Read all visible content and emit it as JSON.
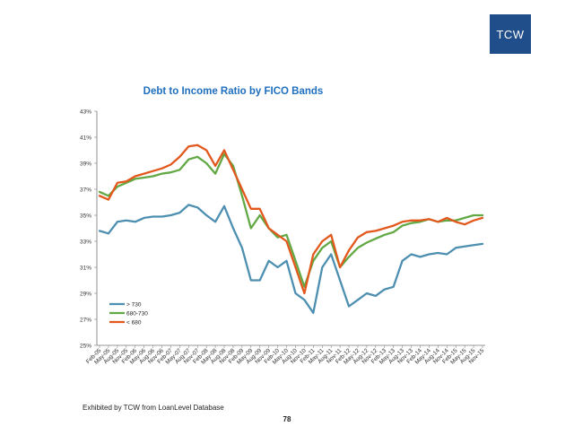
{
  "logo": {
    "text": "TCW"
  },
  "footer": {
    "source": "Exhibited by TCW from LoanLevel Database",
    "page_number": "78"
  },
  "colors": {
    "gt730": "#4d8fb0",
    "b680_730": "#62a844",
    "lt680": "#e2581d",
    "title": "#1f6fbf",
    "logo_bg": "#1f4e8a"
  },
  "chart_data": {
    "type": "line",
    "title": "Debt to Income Ratio by FICO Bands",
    "xlabel": "",
    "ylabel": "",
    "ylim": [
      25,
      43
    ],
    "yticks": [
      "25%",
      "27%",
      "29%",
      "31%",
      "33%",
      "35%",
      "37%",
      "39%",
      "41%",
      "43%"
    ],
    "grid": false,
    "legend_position": "bottom-left",
    "x_tick_labels": [
      "Feb-05",
      "May-05",
      "Aug-05",
      "Nov-05",
      "Feb-06",
      "May-06",
      "Aug-06",
      "Nov-06",
      "Feb-07",
      "May-07",
      "Aug-07",
      "Nov-07",
      "Feb-08",
      "May-08",
      "Aug-08",
      "Nov-08",
      "Feb-09",
      "May-09",
      "Aug-09",
      "Nov-09",
      "Feb-10",
      "May-10",
      "Aug-10",
      "Nov-10",
      "Feb-11",
      "May-11",
      "Aug-11",
      "Nov-11",
      "Feb-12",
      "May-12",
      "Aug-12",
      "Nov-12",
      "Feb-13",
      "May-13",
      "Aug-13",
      "Nov-13",
      "Feb-14",
      "May-14",
      "Aug-14",
      "Nov-14",
      "Feb-15",
      "May-15",
      "Aug-15",
      "Nov-15"
    ],
    "series": [
      {
        "name": "> 730",
        "color": "#4d8fb0",
        "values": [
          33.8,
          33.6,
          34.5,
          34.6,
          34.5,
          34.8,
          34.9,
          34.9,
          35.0,
          35.2,
          35.8,
          35.6,
          35.0,
          34.5,
          35.7,
          34.0,
          32.5,
          30.0,
          30.0,
          31.5,
          31.0,
          31.5,
          29.0,
          28.5,
          27.5,
          31.0,
          32.0,
          30.0,
          28.0,
          28.5,
          29.0,
          28.8,
          29.3,
          29.5,
          31.5,
          32.0,
          31.8,
          32.0,
          32.1,
          32.0,
          32.5,
          32.6,
          32.7,
          32.8
        ]
      },
      {
        "name": "680-730",
        "color": "#62a844",
        "values": [
          36.8,
          36.5,
          37.2,
          37.5,
          37.8,
          37.9,
          38.0,
          38.2,
          38.3,
          38.5,
          39.3,
          39.5,
          39.0,
          38.2,
          39.7,
          38.8,
          36.5,
          34.0,
          35.0,
          34.0,
          33.3,
          33.5,
          31.5,
          29.5,
          31.5,
          32.5,
          33.0,
          31.0,
          31.8,
          32.5,
          32.9,
          33.2,
          33.5,
          33.7,
          34.2,
          34.4,
          34.5,
          34.7,
          34.5,
          34.6,
          34.6,
          34.8,
          35.0,
          35.0
        ]
      },
      {
        "name": "< 680",
        "color": "#e2581d",
        "values": [
          36.5,
          36.2,
          37.5,
          37.6,
          38.0,
          38.2,
          38.4,
          38.6,
          38.9,
          39.5,
          40.3,
          40.4,
          40.0,
          38.8,
          40.0,
          38.5,
          37.0,
          35.5,
          35.5,
          34.0,
          33.5,
          33.0,
          31.0,
          29.0,
          32.0,
          33.0,
          33.5,
          31.0,
          32.3,
          33.3,
          33.7,
          33.8,
          34.0,
          34.2,
          34.5,
          34.6,
          34.6,
          34.7,
          34.5,
          34.8,
          34.5,
          34.3,
          34.6,
          34.8
        ]
      }
    ]
  }
}
